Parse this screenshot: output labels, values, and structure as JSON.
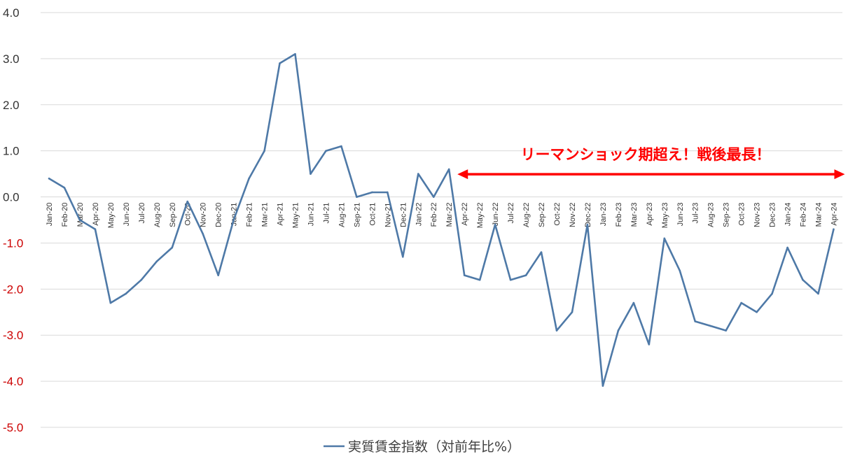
{
  "chart_data": {
    "type": "line",
    "title": "",
    "xlabel": "",
    "ylabel": "",
    "ylim": [
      -5.0,
      4.0
    ],
    "yticks": [
      "4.0",
      "3.0",
      "2.0",
      "1.0",
      "0.0",
      "-1.0",
      "-2.0",
      "-3.0",
      "-4.0",
      "-5.0"
    ],
    "ytick_values": [
      4,
      3,
      2,
      1,
      0,
      -1,
      -2,
      -3,
      -4,
      -5
    ],
    "negative_tick_color": "#cc0000",
    "positive_tick_color": "#333333",
    "grid": true,
    "legend_position": "bottom-center",
    "categories": [
      "Jan-20",
      "Feb-20",
      "Mar-20",
      "Apr-20",
      "May-20",
      "Jun-20",
      "Jul-20",
      "Aug-20",
      "Sep-20",
      "Oct-20",
      "Nov-20",
      "Dec-20",
      "Jan-21",
      "Feb-21",
      "Mar-21",
      "Apr-21",
      "May-21",
      "Jun-21",
      "Jul-21",
      "Aug-21",
      "Sep-21",
      "Oct-21",
      "Nov-21",
      "Dec-21",
      "Jan-22",
      "Feb-22",
      "Mar-22",
      "Apr-22",
      "May-22",
      "Jun-22",
      "Jul-22",
      "Aug-22",
      "Sep-22",
      "Oct-22",
      "Nov-22",
      "Dec-22",
      "Jan-23",
      "Feb-23",
      "Mar-23",
      "Apr-23",
      "May-23",
      "Jun-23",
      "Jul-23",
      "Aug-23",
      "Sep-23",
      "Oct-23",
      "Nov-23",
      "Dec-23",
      "Jan-24",
      "Feb-24",
      "Mar-24",
      "Apr-24"
    ],
    "series": [
      {
        "name": "実質賃金指数（対前年比%）",
        "color": "#4e79a7",
        "values": [
          0.4,
          0.2,
          -0.5,
          -0.7,
          -2.3,
          -2.1,
          -1.8,
          -1.4,
          -1.1,
          -0.1,
          -0.8,
          -1.7,
          -0.5,
          0.4,
          1.0,
          2.9,
          3.1,
          0.5,
          1.0,
          1.1,
          0.0,
          0.1,
          0.1,
          -1.3,
          0.5,
          0.0,
          0.6,
          -1.7,
          -1.8,
          -0.6,
          -1.8,
          -1.7,
          -1.2,
          -2.9,
          -2.5,
          -0.6,
          -4.1,
          -2.9,
          -2.3,
          -3.2,
          -0.9,
          -1.6,
          -2.7,
          -2.8,
          -2.9,
          -2.3,
          -2.5,
          -2.1,
          -1.1,
          -1.8,
          -2.1,
          -0.7
        ]
      }
    ],
    "annotation": {
      "text": "リーマンショック期超え！戦後最長！",
      "color": "#ff0000",
      "arrow_from": "Mar-22",
      "arrow_to": "Apr-24",
      "arrow_value": 0.5
    }
  }
}
